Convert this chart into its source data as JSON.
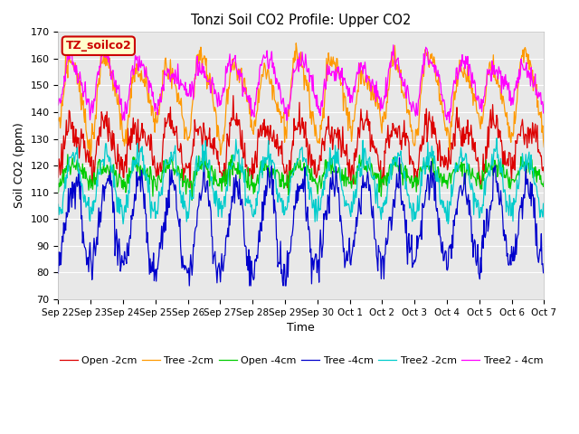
{
  "title": "Tonzi Soil CO2 Profile: Upper CO2",
  "ylabel": "Soil CO2 (ppm)",
  "xlabel": "Time",
  "ylim": [
    70,
    170
  ],
  "legend_label": "TZ_soilco2",
  "series_order": [
    "Open -2cm",
    "Tree -2cm",
    "Open -4cm",
    "Tree -4cm",
    "Tree2 -2cm",
    "Tree2 - 4cm"
  ],
  "series": {
    "Open -2cm": {
      "color": "#dd0000",
      "base": 118,
      "amp": 17,
      "noise": 3.0,
      "min_clip": 105
    },
    "Tree -2cm": {
      "color": "#ff9900",
      "base": 132,
      "amp": 26,
      "noise": 2.5,
      "min_clip": 110
    },
    "Open -4cm": {
      "color": "#00cc00",
      "base": 113,
      "amp": 7,
      "noise": 2.0,
      "min_clip": 103
    },
    "Tree -4cm": {
      "color": "#0000cc",
      "base": 103,
      "amp": 12,
      "noise": 3.5,
      "min_clip": 75
    },
    "Tree2 -2cm": {
      "color": "#00cccc",
      "base": 112,
      "amp": 13,
      "noise": 2.5,
      "min_clip": 88
    },
    "Tree2 - 4cm": {
      "color": "#ff00ff",
      "base": 142,
      "amp": 16,
      "noise": 2.0,
      "min_clip": 125
    }
  },
  "x_tick_labels": [
    "Sep 22",
    "Sep 23",
    "Sep 24",
    "Sep 25",
    "Sep 26",
    "Sep 27",
    "Sep 28",
    "Sep 29",
    "Sep 30",
    "Oct 1",
    "Oct 2",
    "Oct 3",
    "Oct 4",
    "Oct 5",
    "Oct 6",
    "Oct 7"
  ],
  "plot_bg": "#e8e8e8",
  "fig_bg": "#ffffff",
  "legend_bg": "#ffffcc",
  "legend_border": "#cc0000",
  "grid_color": "#ffffff",
  "figsize": [
    6.4,
    4.8
  ],
  "dpi": 100
}
